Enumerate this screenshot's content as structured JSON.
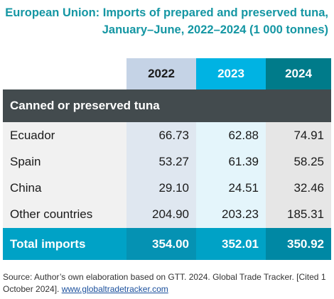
{
  "title": "European Union: Imports of prepared and preserved tuna, January–June, 2022–2024 (1 000 tonnes)",
  "columns": [
    "2022",
    "2023",
    "2024"
  ],
  "section": "Canned or preserved tuna",
  "rows": [
    {
      "label": "Ecuador",
      "values": [
        "66.73",
        "62.88",
        "74.91"
      ]
    },
    {
      "label": "Spain",
      "values": [
        "53.27",
        "61.39",
        "58.25"
      ]
    },
    {
      "label": "China",
      "values": [
        "29.10",
        "24.51",
        "32.46"
      ]
    },
    {
      "label": "Other countries",
      "values": [
        "204.90",
        "203.23",
        "185.31"
      ]
    }
  ],
  "total": {
    "label": "Total imports",
    "values": [
      "354.00",
      "352.01",
      "350.92"
    ]
  },
  "source": {
    "text": "Source: Author’s own elaboration based on GTT. 2024. Global Trade Tracker. [Cited 1 October 2024]. ",
    "link": "www.globaltradetracker.com"
  },
  "colors": {
    "title": "#1496a3",
    "col_2022": "#c5d3e6",
    "col_2023": "#00b3e3",
    "col_2024": "#007b8a",
    "section_bg": "#434b4e",
    "total_bg": "#00a2c6"
  }
}
